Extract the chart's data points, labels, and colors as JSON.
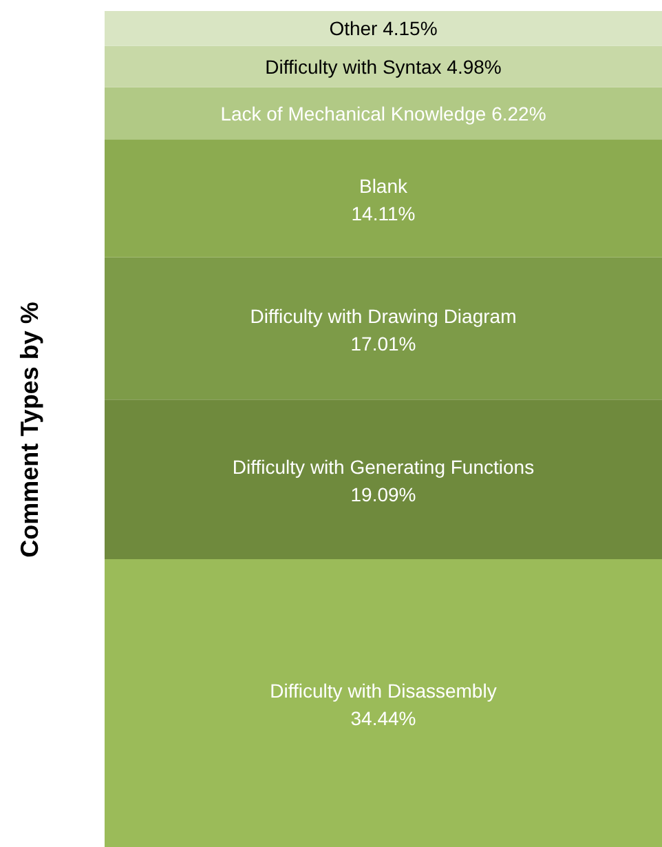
{
  "chart_data": {
    "type": "bar",
    "stacked": true,
    "categories": [
      null
    ],
    "ylabel": "Comment Types by %",
    "legend": false,
    "grid": false,
    "series": [
      {
        "name": "Difficulty with Disassembly",
        "color": "#9bbb59",
        "values": [
          34.44
        ],
        "value_labels": [
          "34.44%"
        ]
      },
      {
        "name": "Difficulty with Generating Functions",
        "color": "#6f8a3d",
        "values": [
          19.09
        ],
        "value_labels": [
          "19.09%"
        ]
      },
      {
        "name": "Difficulty with Drawing Diagram",
        "color": "#7d9b48",
        "values": [
          17.01
        ],
        "value_labels": [
          "17.01%"
        ]
      },
      {
        "name": "Blank",
        "color": "#8cab50",
        "values": [
          14.11
        ],
        "value_labels": [
          "14.11%"
        ]
      },
      {
        "name": "Lack of Mechanical Knowledge",
        "color": "#b1c985",
        "values": [
          6.22
        ],
        "value_labels": [
          "6.22%"
        ]
      },
      {
        "name": "Difficulty with Syntax",
        "color": "#c8d9a7",
        "values": [
          4.98
        ],
        "value_labels": [
          "4.98%"
        ]
      },
      {
        "name": "Other",
        "color": "#d9e5c3",
        "values": [
          4.15
        ],
        "value_labels": [
          "4.15%"
        ]
      }
    ]
  }
}
